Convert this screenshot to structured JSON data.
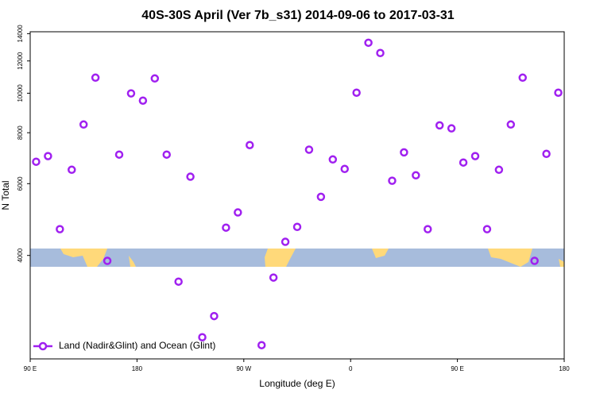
{
  "chart_data": {
    "type": "scatter",
    "title": "40S-30S April (Ver 7b_s31)   2014-09-06 to 2017-03-31",
    "xlabel": "Longitude (deg E)",
    "ylabel": "N Total",
    "xlim": [
      90,
      540
    ],
    "xticks": [
      {
        "value": 90,
        "label": "90 E"
      },
      {
        "value": 180,
        "label": "180"
      },
      {
        "value": 270,
        "label": "90 W"
      },
      {
        "value": 360,
        "label": "0"
      },
      {
        "value": 450,
        "label": "90 E"
      },
      {
        "value": 540,
        "label": "180"
      }
    ],
    "ylim": [
      2230,
      14150
    ],
    "log_y": true,
    "yticks": [
      4000,
      6000,
      8000,
      10000,
      12000,
      14000
    ],
    "legend": "bottom-left",
    "series": [
      {
        "name": "Land (Nadir&Glint) and Ocean (Glint)",
        "color": "#a020f0",
        "x": [
          95,
          105,
          115,
          125,
          135,
          145,
          155,
          165,
          175,
          185,
          195,
          205,
          215,
          225,
          235,
          245,
          255,
          265,
          275,
          285,
          295,
          305,
          315,
          325,
          335,
          345,
          355,
          365,
          375,
          385,
          395,
          405,
          415,
          425,
          435,
          445,
          455,
          465,
          475,
          485,
          495,
          505,
          515,
          525,
          535
        ],
        "values": [
          6790,
          7010,
          4640,
          6490,
          8380,
          10920,
          3880,
          7070,
          9990,
          9590,
          10870,
          7070,
          3450,
          6240,
          2520,
          2840,
          4680,
          5100,
          7460,
          2410,
          3530,
          4320,
          4700,
          7270,
          5570,
          6880,
          6520,
          10030,
          13300,
          12550,
          6100,
          7160,
          6290,
          4640,
          8340,
          8200,
          6760,
          7010,
          4640,
          6490,
          8380,
          10920,
          3880,
          7100,
          10030
        ]
      }
    ]
  }
}
